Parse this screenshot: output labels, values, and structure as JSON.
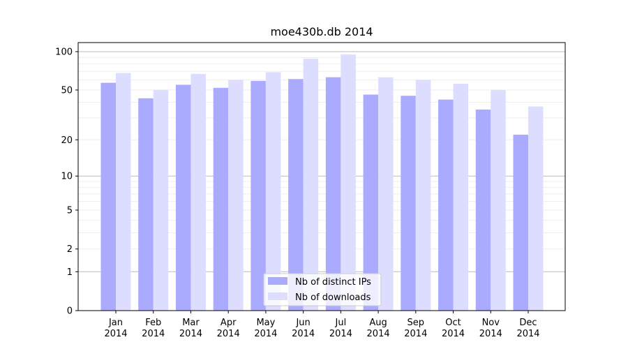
{
  "chart_data": {
    "type": "bar",
    "title": "moe430b.db 2014",
    "xlabel": "",
    "ylabel": "",
    "y_scale": "log(1+y)",
    "ylim": [
      0,
      110
    ],
    "y_ticks": [
      0,
      1,
      2,
      5,
      10,
      20,
      50,
      100
    ],
    "y_tick_labels": [
      "0",
      "1",
      "2",
      "5",
      "10",
      "20",
      "50",
      "100"
    ],
    "categories": [
      [
        "Jan",
        "2014"
      ],
      [
        "Feb",
        "2014"
      ],
      [
        "Mar",
        "2014"
      ],
      [
        "Apr",
        "2014"
      ],
      [
        "May",
        "2014"
      ],
      [
        "Jun",
        "2014"
      ],
      [
        "Jul",
        "2014"
      ],
      [
        "Aug",
        "2014"
      ],
      [
        "Sep",
        "2014"
      ],
      [
        "Oct",
        "2014"
      ],
      [
        "Nov",
        "2014"
      ],
      [
        "Dec",
        "2014"
      ]
    ],
    "series": [
      {
        "name": "Nb of distinct IPs",
        "color": "#aaaaff",
        "values": [
          57,
          43,
          55,
          52,
          59,
          61,
          63,
          46,
          45,
          42,
          35,
          22
        ]
      },
      {
        "name": "Nb of downloads",
        "color": "#ddddff",
        "values": [
          68,
          50,
          67,
          60,
          69,
          88,
          95,
          63,
          60,
          56,
          50,
          37
        ]
      }
    ],
    "legend": "bottom-center",
    "grid": true
  }
}
